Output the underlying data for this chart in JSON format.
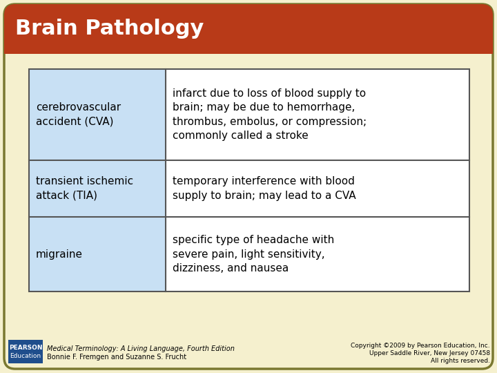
{
  "title": "Brain Pathology",
  "title_color": "#FFFFFF",
  "title_bg_color": "#B83A18",
  "slide_bg_color": "#F5F0CE",
  "slide_border_color": "#7A7830",
  "table_border_color": "#555555",
  "left_col_bg": "#C8E0F4",
  "right_col_bg": "#FFFFFF",
  "rows": [
    {
      "left": "cerebrovascular\naccident (CVA)",
      "right": "infarct due to loss of blood supply to\nbrain; may be due to hemorrhage,\nthrombus, embolus, or compression;\ncommonly called a stroke"
    },
    {
      "left": "transient ischemic\nattack (TIA)",
      "right": "temporary interference with blood\nsupply to brain; may lead to a CVA"
    },
    {
      "left": "migraine",
      "right": "specific type of headache with\nsevere pain, light sensitivity,\ndizziness, and nausea"
    }
  ],
  "footer_left_line1": "Medical Terminology: A Living Language, Fourth Edition",
  "footer_left_line2": "Bonnie F. Fremgen and Suzanne S. Frucht",
  "footer_right_line1": "Copyright ©2009 by Pearson Education, Inc.",
  "footer_right_line2": "Upper Saddle River, New Jersey 07458",
  "footer_right_line3": "All rights reserved.",
  "pearson_box_color": "#1F4E8C",
  "pearson_line1": "PEARSON",
  "pearson_line2": "Education"
}
